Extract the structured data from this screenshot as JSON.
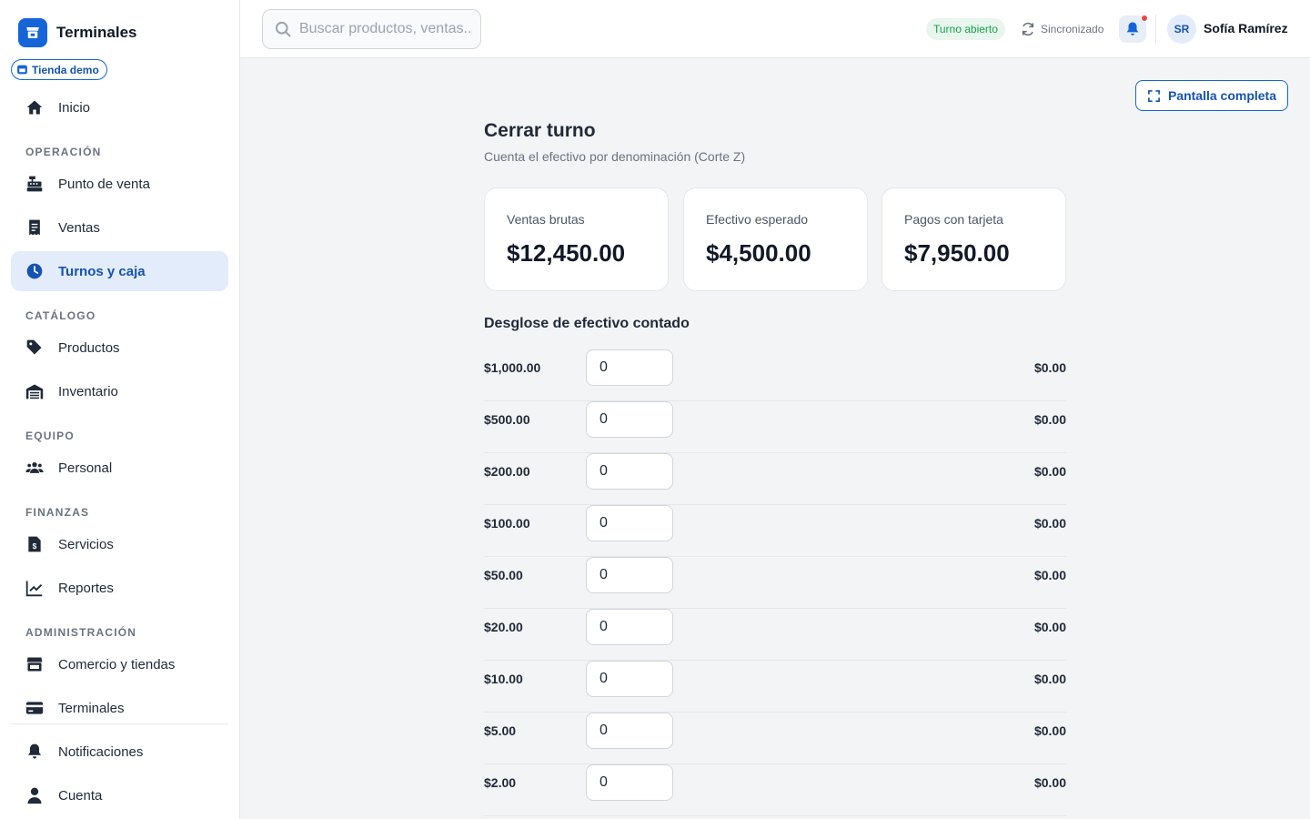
{
  "app": {
    "title": "Terminales"
  },
  "store_badge": {
    "label": "Tienda demo"
  },
  "sidebar": {
    "home": {
      "label": "Inicio"
    },
    "sections": {
      "operacion": "OPERACIÓN",
      "catalogo": "CATÁLOGO",
      "equipo": "EQUIPO",
      "finanzas": "FINANZAS",
      "administracion": "ADMINISTRACIÓN"
    },
    "items": {
      "punto_de_venta": "Punto de venta",
      "ventas": "Ventas",
      "turnos_y_caja": "Turnos y caja",
      "productos": "Productos",
      "inventario": "Inventario",
      "personal": "Personal",
      "servicios": "Servicios",
      "reportes": "Reportes",
      "comercio_y_tiendas": "Comercio y tiendas",
      "terminales": "Terminales",
      "notificaciones": "Notificaciones",
      "cuenta": "Cuenta"
    },
    "active_item": "turnos_y_caja"
  },
  "header": {
    "search_placeholder": "Buscar productos, ventas...",
    "shift_status": "Turno abierto",
    "sync_status": "Sincronizado",
    "user": {
      "initials": "SR",
      "name": "Sofía Ramírez"
    }
  },
  "main": {
    "fullscreen_label": "Pantalla completa",
    "title": "Cerrar turno",
    "subtitle": "Cuenta el efectivo por denominación (Corte Z)",
    "stats": [
      {
        "label": "Ventas brutas",
        "value": "$12,450.00"
      },
      {
        "label": "Efectivo esperado",
        "value": "$4,500.00"
      },
      {
        "label": "Pagos con tarjeta",
        "value": "$7,950.00"
      }
    ],
    "breakdown_title": "Desglose de efectivo contado",
    "denominations": [
      {
        "label": "$1,000.00",
        "count": "0",
        "subtotal": "$0.00"
      },
      {
        "label": "$500.00",
        "count": "0",
        "subtotal": "$0.00"
      },
      {
        "label": "$200.00",
        "count": "0",
        "subtotal": "$0.00"
      },
      {
        "label": "$100.00",
        "count": "0",
        "subtotal": "$0.00"
      },
      {
        "label": "$50.00",
        "count": "0",
        "subtotal": "$0.00"
      },
      {
        "label": "$20.00",
        "count": "0",
        "subtotal": "$0.00"
      },
      {
        "label": "$10.00",
        "count": "0",
        "subtotal": "$0.00"
      },
      {
        "label": "$5.00",
        "count": "0",
        "subtotal": "$0.00"
      },
      {
        "label": "$2.00",
        "count": "0",
        "subtotal": "$0.00"
      }
    ]
  },
  "colors": {
    "accent": "#1565d8",
    "accent_text": "#1553b4",
    "active_bg": "#e3ecfa",
    "success": "#16a34a",
    "notification_dot": "#ef4444"
  }
}
